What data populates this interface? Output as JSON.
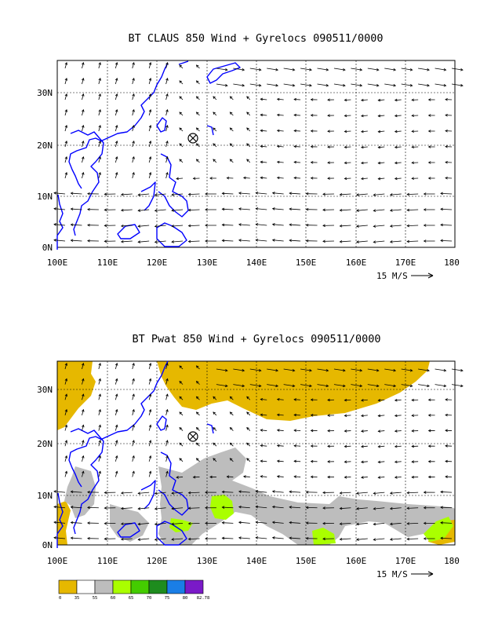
{
  "panel1": {
    "title": "BT CLAUS 850 Wind + Gyrelocs 090511/0000",
    "lat_labels": [
      "30N",
      "20N",
      "10N",
      "0N"
    ],
    "lon_labels": [
      "100E",
      "110E",
      "120E",
      "130E",
      "140E",
      "150E",
      "160E",
      "170E",
      "180"
    ],
    "ref_vector_label": "15 M/S"
  },
  "panel2": {
    "title": "BT Pwat 850 Wind + Gyrelocs 090511/0000",
    "lat_labels": [
      "30N",
      "20N",
      "10N",
      "0N"
    ],
    "lon_labels": [
      "100E",
      "110E",
      "120E",
      "130E",
      "140E",
      "150E",
      "160E",
      "170E",
      "180"
    ],
    "ref_vector_label": "15 M/S"
  },
  "colorbar": {
    "labels": [
      "0",
      "35",
      "55",
      "60",
      "65",
      "70",
      "75",
      "80",
      "82.78"
    ],
    "colors": [
      "#e6b800",
      "#ffffff",
      "#bdbdbd",
      "#aaff00",
      "#44cc00",
      "#1e8c1e",
      "#1a7ee6",
      "#7a1ac8"
    ]
  },
  "colors": {
    "coast": "#0000ff",
    "gyre_marker": "#000000"
  }
}
